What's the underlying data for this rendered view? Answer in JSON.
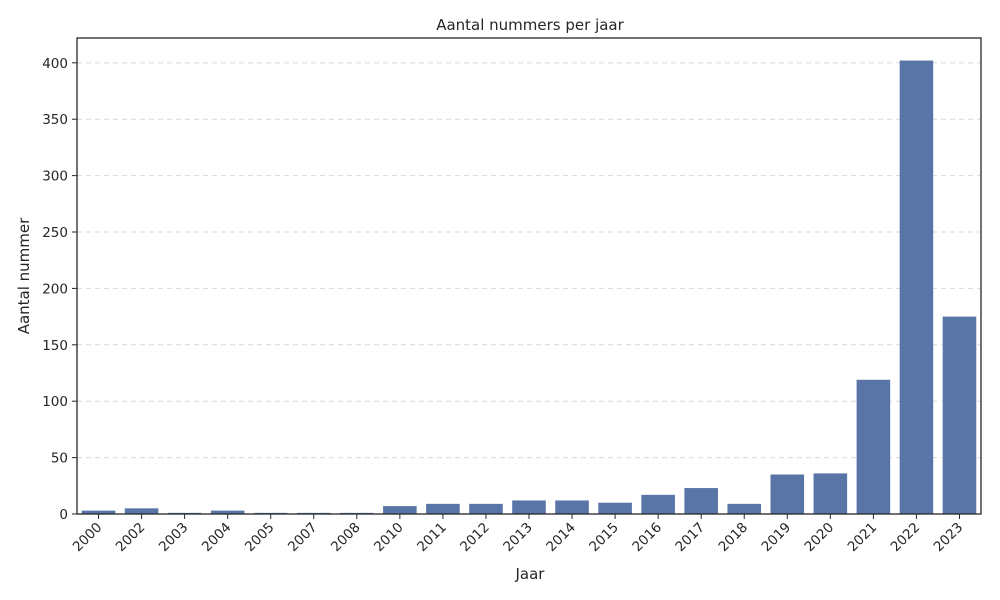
{
  "chart_data": {
    "type": "bar",
    "title": "Aantal nummers per jaar",
    "xlabel": "Jaar",
    "ylabel": "Aantal nummer",
    "categories": [
      "2000",
      "2002",
      "2003",
      "2004",
      "2005",
      "2007",
      "2008",
      "2010",
      "2011",
      "2012",
      "2013",
      "2014",
      "2015",
      "2016",
      "2017",
      "2018",
      "2019",
      "2020",
      "2021",
      "2022",
      "2023"
    ],
    "values": [
      3,
      5,
      1,
      3,
      1,
      1,
      1,
      7,
      9,
      9,
      12,
      12,
      10,
      17,
      23,
      9,
      35,
      36,
      119,
      402,
      175
    ],
    "ylim": [
      0,
      422
    ],
    "yticks": [
      0,
      50,
      100,
      150,
      200,
      250,
      300,
      350,
      400
    ],
    "grid": "horizontal dashed",
    "bar_color": "#5975a8",
    "grid_color": "#d9d9d9",
    "axis_color": "#262626"
  }
}
